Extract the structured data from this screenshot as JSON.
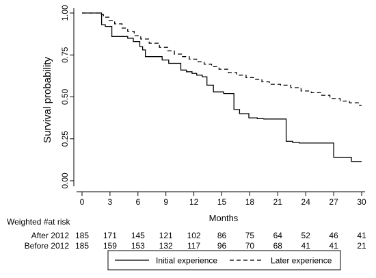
{
  "chart_data": {
    "type": "line",
    "step": true,
    "xlabel": "Months",
    "ylabel": "Survival probability",
    "xlim": [
      0,
      30
    ],
    "ylim": [
      0,
      1
    ],
    "xticks": [
      "0",
      "3",
      "6",
      "9",
      "12",
      "15",
      "18",
      "21",
      "24",
      "27",
      "30"
    ],
    "yticks": [
      "0.00",
      "0.25",
      "0.50",
      "0.75",
      "1.00"
    ],
    "grid": false,
    "legend_position": "bottom",
    "series": [
      {
        "name": "Initial experience",
        "dash": "solid",
        "x": [
          0,
          1.9,
          2.1,
          2.5,
          3.2,
          4.9,
          5.5,
          6.2,
          6.5,
          6.8,
          8.6,
          9.3,
          10.6,
          11.2,
          11.8,
          12.3,
          12.9,
          13.4,
          14.1,
          15.2,
          16.3,
          16.9,
          17.9,
          18.8,
          19.5,
          21.0,
          21.9,
          22.6,
          23.3,
          27.0,
          28.9,
          30.0
        ],
        "y": [
          1.0,
          1.0,
          0.93,
          0.92,
          0.86,
          0.85,
          0.83,
          0.8,
          0.78,
          0.74,
          0.72,
          0.7,
          0.66,
          0.65,
          0.64,
          0.63,
          0.62,
          0.57,
          0.53,
          0.52,
          0.425,
          0.4,
          0.375,
          0.37,
          0.368,
          0.368,
          0.235,
          0.228,
          0.225,
          0.14,
          0.115,
          0.115
        ]
      },
      {
        "name": "Later experience",
        "dash": "dashed",
        "x": [
          0,
          1.9,
          2.3,
          2.9,
          3.5,
          4.3,
          4.9,
          5.6,
          6.3,
          7.2,
          8.3,
          9.2,
          9.9,
          10.7,
          11.5,
          12.3,
          13.1,
          13.9,
          14.7,
          15.7,
          16.6,
          17.6,
          18.4,
          19.3,
          20.1,
          21.3,
          22.4,
          23.5,
          24.6,
          25.6,
          26.6,
          27.7,
          28.7,
          29.7,
          30.0
        ],
        "y": [
          1.0,
          0.99,
          0.975,
          0.955,
          0.935,
          0.91,
          0.89,
          0.865,
          0.845,
          0.82,
          0.795,
          0.775,
          0.755,
          0.74,
          0.725,
          0.71,
          0.695,
          0.68,
          0.665,
          0.645,
          0.63,
          0.615,
          0.605,
          0.59,
          0.575,
          0.57,
          0.555,
          0.535,
          0.525,
          0.51,
          0.49,
          0.475,
          0.465,
          0.45,
          0.45
        ]
      }
    ],
    "risk_table": {
      "title": "Weighted #at risk",
      "times": [
        0,
        3,
        6,
        9,
        12,
        15,
        18,
        21,
        24,
        27,
        30
      ],
      "rows": [
        {
          "label": "After 2012",
          "values": [
            "185",
            "171",
            "145",
            "121",
            "102",
            "86",
            "75",
            "64",
            "52",
            "46",
            "41"
          ]
        },
        {
          "label": "Before 2012",
          "values": [
            "185",
            "159",
            "153",
            "132",
            "117",
            "96",
            "70",
            "68",
            "41",
            "41",
            "21"
          ]
        }
      ]
    }
  }
}
